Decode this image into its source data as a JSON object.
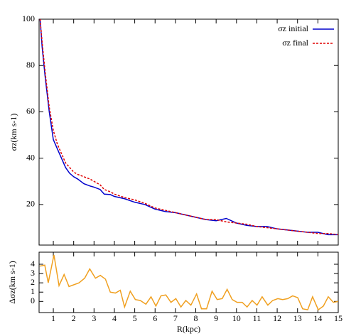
{
  "chart_data": [
    {
      "type": "line",
      "ylabel": "σz(km s-1)",
      "legend": "upper right",
      "xlim": [
        0.3,
        15
      ],
      "ylim": [
        2.5,
        100
      ],
      "yticks": [
        20,
        40,
        60,
        80,
        100
      ],
      "x": [
        0.35,
        0.45,
        0.6,
        0.8,
        1.0,
        1.2,
        1.4,
        1.6,
        1.8,
        2.0,
        2.2,
        2.5,
        2.8,
        3.0,
        3.3,
        3.5,
        3.8,
        4,
        4.5,
        5,
        5.5,
        6,
        6.5,
        7,
        7.5,
        8,
        8.5,
        9,
        9.5,
        10,
        10.5,
        11,
        11.5,
        12,
        12.5,
        13,
        13.5,
        14,
        14.5,
        15
      ],
      "series": [
        {
          "name": "σz initial",
          "color": "#0000cc",
          "dash": "solid",
          "values": [
            100,
            88,
            75,
            60,
            48,
            44,
            40,
            36,
            33.5,
            32,
            31,
            29,
            28,
            27.5,
            26.5,
            24.5,
            24.3,
            23.5,
            22.5,
            21,
            20,
            18,
            17,
            16.5,
            15.5,
            14.5,
            13.5,
            13,
            14,
            12,
            11,
            10.5,
            10.5,
            9.5,
            9,
            8.5,
            8,
            8,
            7,
            7
          ]
        },
        {
          "name": "σz final",
          "color": "#e00000",
          "dash": "dashed",
          "values": [
            100,
            90,
            77,
            62,
            52,
            46,
            42,
            38,
            36,
            34,
            33,
            32,
            31,
            30,
            28.5,
            26.5,
            25.5,
            24.5,
            23,
            22,
            20.5,
            18.5,
            17.5,
            16.5,
            15.5,
            14.5,
            13.5,
            13.5,
            12.5,
            12,
            11.5,
            10.5,
            10,
            9.5,
            9,
            8.5,
            8,
            7.5,
            7.5,
            7
          ]
        }
      ]
    },
    {
      "type": "line",
      "ylabel": "Δσz(km s-1)",
      "xlabel": "R(kpc)",
      "xlim": [
        0.3,
        15
      ],
      "ylim": [
        -1.2,
        5.3
      ],
      "yticks": [
        0,
        1,
        2,
        3,
        4
      ],
      "xticks": [
        1,
        2,
        3,
        4,
        5,
        6,
        7,
        8,
        9,
        10,
        11,
        12,
        13,
        14,
        15
      ],
      "x": [
        0.33,
        0.58,
        0.75,
        1.03,
        1.28,
        1.53,
        1.77,
        2.26,
        2.54,
        2.79,
        3.07,
        3.31,
        3.56,
        3.8,
        4.05,
        4.29,
        4.5,
        4.78,
        5.03,
        5.27,
        5.55,
        5.8,
        6.04,
        6.29,
        6.53,
        6.78,
        7.02,
        7.27,
        7.51,
        7.76,
        8.04,
        8.28,
        8.53,
        8.8,
        9.05,
        9.3,
        9.54,
        9.79,
        10.03,
        10.28,
        10.52,
        10.77,
        11.01,
        11.26,
        11.54,
        11.78,
        12.03,
        12.27,
        12.52,
        12.76,
        13.01,
        13.25,
        13.5,
        13.74,
        14.02,
        14.27,
        14.51,
        14.76,
        15
      ],
      "series": [
        {
          "color": "#f0a020",
          "values": [
            3.8,
            3.9,
            2.0,
            5.0,
            1.7,
            2.9,
            1.6,
            2.0,
            2.5,
            3.5,
            2.5,
            2.8,
            2.4,
            1.0,
            0.9,
            1.2,
            -0.6,
            1.1,
            0.2,
            0.1,
            -0.3,
            0.5,
            -0.5,
            0.6,
            0.7,
            -0.1,
            0.3,
            -0.6,
            0.1,
            -0.4,
            0.8,
            -0.8,
            -0.8,
            1.1,
            0.2,
            0.3,
            1.3,
            0.2,
            -0.1,
            -0.1,
            -0.6,
            0.1,
            -0.4,
            0.5,
            -0.4,
            0.1,
            0.3,
            0.2,
            0.3,
            0.6,
            0.4,
            -0.8,
            -0.9,
            0.5,
            -0.9,
            -0.5,
            0.5,
            -0.1,
            0.0
          ]
        }
      ]
    }
  ]
}
